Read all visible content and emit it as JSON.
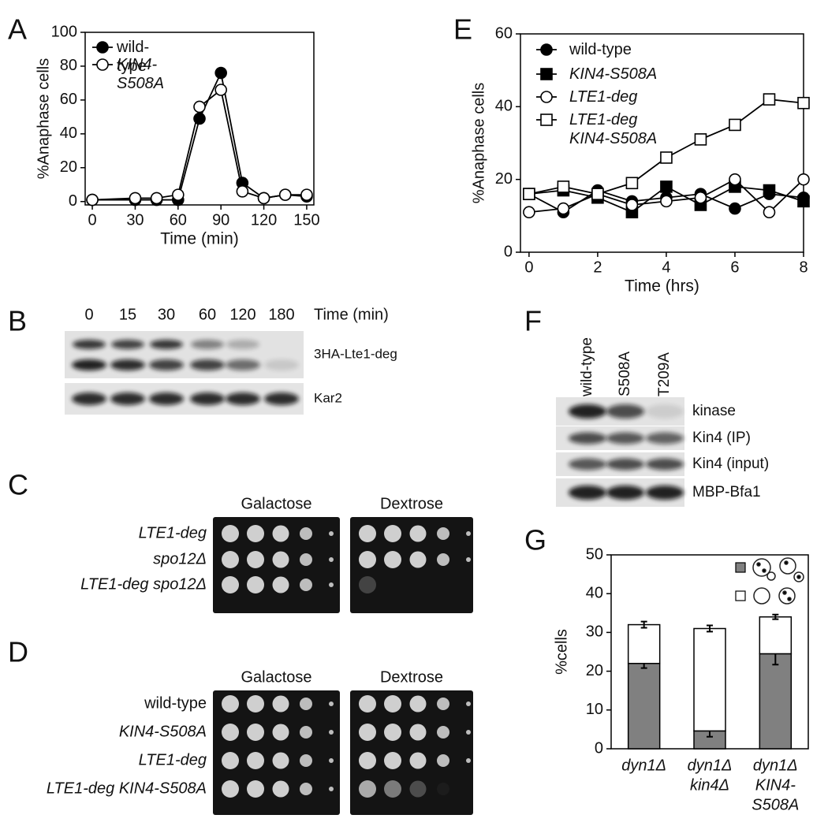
{
  "panel_letters": [
    "A",
    "B",
    "C",
    "D",
    "E",
    "F",
    "G"
  ],
  "chart_data": [
    {
      "type": "line",
      "xlabel": "Time (min)",
      "ylabel": "%Anaphase cells",
      "x": [
        0,
        30,
        45,
        60,
        75,
        90,
        105,
        120,
        135,
        150
      ],
      "series": [
        {
          "name": "wild-type",
          "color": "#000000",
          "marker": "filled-circle",
          "values": [
            1,
            1,
            1,
            1,
            49,
            76,
            11,
            2,
            4,
            3
          ]
        },
        {
          "name": "KIN4-S508A",
          "color": "#000000",
          "marker": "open-circle",
          "values": [
            1,
            2,
            2,
            4,
            56,
            66,
            6,
            2,
            4,
            4
          ]
        }
      ],
      "xlim": [
        -5,
        155
      ],
      "ylim": [
        -2,
        100
      ],
      "xticks": [
        0,
        30,
        60,
        90,
        120,
        150
      ],
      "yticks": [
        0,
        20,
        40,
        60,
        80,
        100
      ]
    },
    {
      "type": "line",
      "xlabel": "Time (hrs)",
      "ylabel": "%Anaphase cells",
      "x": [
        0,
        1,
        2,
        3,
        4,
        5,
        6,
        7,
        8
      ],
      "series": [
        {
          "name": "wild-type",
          "color": "#000000",
          "marker": "filled-circle",
          "values": [
            16,
            11,
            17,
            14,
            15,
            16,
            12,
            16,
            15
          ]
        },
        {
          "name": "KIN4-S508A",
          "color": "#000000",
          "marker": "filled-square",
          "values": [
            16,
            17,
            15,
            11,
            18,
            13,
            18,
            17,
            14
          ]
        },
        {
          "name": "LTE1-deg",
          "color": "#000000",
          "marker": "open-circle",
          "values": [
            11,
            12,
            16,
            13,
            14,
            15,
            20,
            11,
            20
          ]
        },
        {
          "name": "LTE1-deg KIN4-S508A",
          "color": "#000000",
          "marker": "open-square",
          "values": [
            16,
            18,
            16,
            19,
            26,
            31,
            35,
            42,
            41
          ]
        }
      ],
      "xlim": [
        -0.25,
        8
      ],
      "ylim": [
        0,
        60
      ],
      "xticks": [
        0,
        2,
        4,
        6,
        8
      ],
      "yticks": [
        0,
        20,
        40,
        60
      ]
    },
    {
      "type": "stacked-bar",
      "ylabel": "%cells",
      "categories": [
        [
          "dyn1Δ"
        ],
        [
          "dyn1Δ",
          "kin4Δ"
        ],
        [
          "dyn1Δ",
          "KIN4-",
          "S508A"
        ]
      ],
      "series": [
        {
          "color": "#808080",
          "values": [
            22,
            4.6,
            24.5
          ],
          "errors": [
            1.2,
            1.5,
            2.8
          ]
        },
        {
          "color": "#ffffff",
          "values": [
            10,
            26.4,
            9.5
          ],
          "errors": [
            0.8,
            0.8,
            0.6
          ]
        }
      ],
      "ylim": [
        0,
        50
      ],
      "yticks": [
        0,
        10,
        20,
        30,
        40,
        50
      ]
    }
  ],
  "blot_B": {
    "lanes": [
      "0",
      "15",
      "30",
      "60",
      "120",
      "180"
    ],
    "lane_axis": "Time (min)",
    "rows": [
      "3HA-Lte1-deg",
      "Kar2"
    ]
  },
  "spot_C": {
    "media": [
      "Galactose",
      "Dextrose"
    ],
    "strains": [
      "LTE1-deg",
      "spo12Δ",
      "LTE1-deg spo12Δ"
    ]
  },
  "spot_D": {
    "media": [
      "Galactose",
      "Dextrose"
    ],
    "strains": [
      "wild-type",
      "KIN4-S508A",
      "LTE1-deg",
      "LTE1-deg KIN4-S508A"
    ]
  },
  "blot_F": {
    "lanes": [
      "wild-type",
      "S508A",
      "T209A"
    ],
    "rows": [
      "kinase",
      "Kin4 (IP)",
      "Kin4 (input)",
      "MBP-Bfa1"
    ]
  }
}
